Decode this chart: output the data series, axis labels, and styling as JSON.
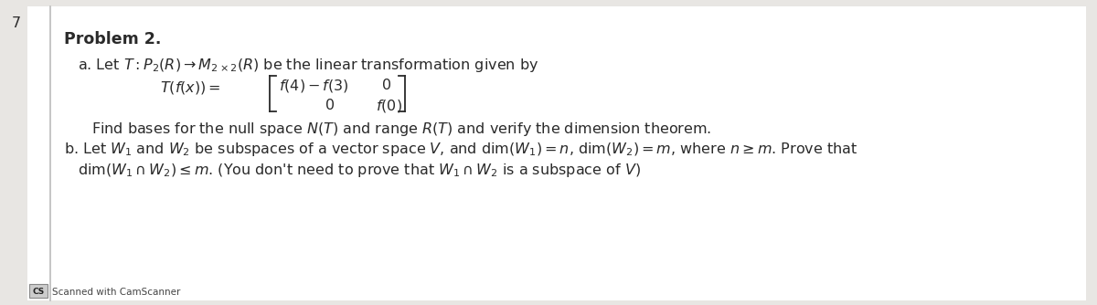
{
  "bg_color": "#e8e6e3",
  "page_bg": "#ffffff",
  "text_color": "#2a2a2a",
  "page_number": "7",
  "problem_label": "Problem 2.",
  "part_a_intro": "a. Let $T: P_2(R) \\rightarrow M_{2\\times 2}(R)$ be the linear transformation given by",
  "transformation_label": "$T(f(x)) = $",
  "matrix_row1_left": "$f(4) - f(3)$",
  "matrix_row1_right": "$0$",
  "matrix_row2_left": "$0$",
  "matrix_row2_right": "$f(0)$",
  "part_a_find": "Find bases for the null space $N(T)$ and range $R(T)$ and verify the dimension theorem.",
  "part_b": "b. Let $W_1$ and $W_2$ be subspaces of a vector space $V$, and $\\mathrm{dim}(W_1) = n$, $\\mathrm{dim}(W_2) = m$, where $n \\geq m$. Prove that",
  "part_b2": "$\\mathrm{dim}(W_1 \\cap W_2) \\leq m$. (You don't need to prove that $W_1 \\cap W_2$ is a subspace of $V$)",
  "scanner_label": "Scanned with CamScanner",
  "fontsize_main": 11.5,
  "fontsize_problem": 12.5,
  "fontsize_small": 7.5
}
